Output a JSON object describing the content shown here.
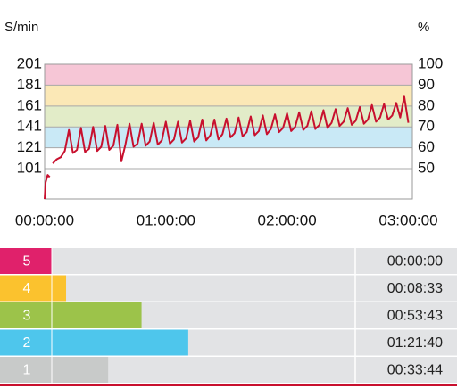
{
  "chart_data": {
    "type": "line",
    "y_label": "S/min",
    "y2_label": "%",
    "xlim": [
      0,
      182
    ],
    "xticks": [
      {
        "value": 0,
        "label": "00:00:00"
      },
      {
        "value": 60,
        "label": "01:00:00"
      },
      {
        "value": 120,
        "label": "02:00:00"
      },
      {
        "value": 180,
        "label": "03:00:00"
      }
    ],
    "ylim": [
      72,
      201
    ],
    "yticks": [
      101,
      121,
      141,
      161,
      181,
      201
    ],
    "y2lim": [
      35.5,
      100
    ],
    "y2ticks": [
      50,
      60,
      70,
      80,
      90,
      100
    ],
    "grid": true,
    "bands": [
      {
        "from": 181,
        "to": 201,
        "color": "#f6c6d6"
      },
      {
        "from": 161,
        "to": 181,
        "color": "#fbe8b6"
      },
      {
        "from": 141,
        "to": 161,
        "color": "#e2ecc8"
      },
      {
        "from": 121,
        "to": 141,
        "color": "#c9e9f6"
      }
    ],
    "x": [
      0,
      0.5,
      1.5,
      2.5,
      3,
      4,
      6,
      8,
      10,
      12,
      14,
      16,
      18,
      20,
      22,
      24,
      26,
      28,
      30,
      32,
      34,
      36,
      38,
      40,
      42,
      44,
      46,
      48,
      50,
      52,
      54,
      56,
      58,
      60,
      62,
      64,
      66,
      68,
      70,
      72,
      74,
      76,
      78,
      80,
      82,
      84,
      86,
      88,
      90,
      92,
      94,
      96,
      98,
      100,
      102,
      104,
      106,
      108,
      110,
      112,
      114,
      116,
      118,
      120,
      122,
      124,
      126,
      128,
      130,
      132,
      134,
      136,
      138,
      140,
      142,
      144,
      146,
      148,
      150,
      152,
      154,
      156,
      158,
      160,
      162,
      164,
      166,
      168,
      170,
      172,
      174,
      176,
      178,
      180
    ],
    "series": [
      {
        "name": "S/min",
        "color": "#c8102e",
        "values": [
          72,
          88,
          95,
          93,
          null,
          106,
          110,
          112,
          118,
          138,
          116,
          119,
          140,
          117,
          120,
          141,
          118,
          122,
          142,
          119,
          123,
          143,
          108,
          124,
          144,
          122,
          125,
          144,
          123,
          127,
          145,
          124,
          128,
          146,
          125,
          129,
          146,
          126,
          130,
          147,
          127,
          131,
          148,
          128,
          133,
          148,
          129,
          134,
          149,
          131,
          135,
          150,
          132,
          136,
          151,
          133,
          137,
          152,
          134,
          139,
          153,
          136,
          140,
          154,
          137,
          141,
          155,
          138,
          142,
          156,
          139,
          143,
          157,
          140,
          145,
          158,
          142,
          146,
          159,
          143,
          147,
          160,
          144,
          148,
          162,
          146,
          150,
          163,
          148,
          152,
          164,
          150,
          170,
          145
        ]
      }
    ]
  },
  "zones": {
    "categories": [
      "5",
      "4",
      "3",
      "2",
      "1"
    ],
    "values": [
      0,
      513,
      3223,
      4900,
      2024
    ],
    "value_labels": [
      "00:00:00",
      "00:08:33",
      "00:53:43",
      "01:21:40",
      "00:33:44"
    ],
    "colors": [
      "#e0216b",
      "#fbc22e",
      "#9cc34a",
      "#4ec6ec",
      "#c8cac9"
    ],
    "xlim": [
      0,
      14550
    ]
  }
}
